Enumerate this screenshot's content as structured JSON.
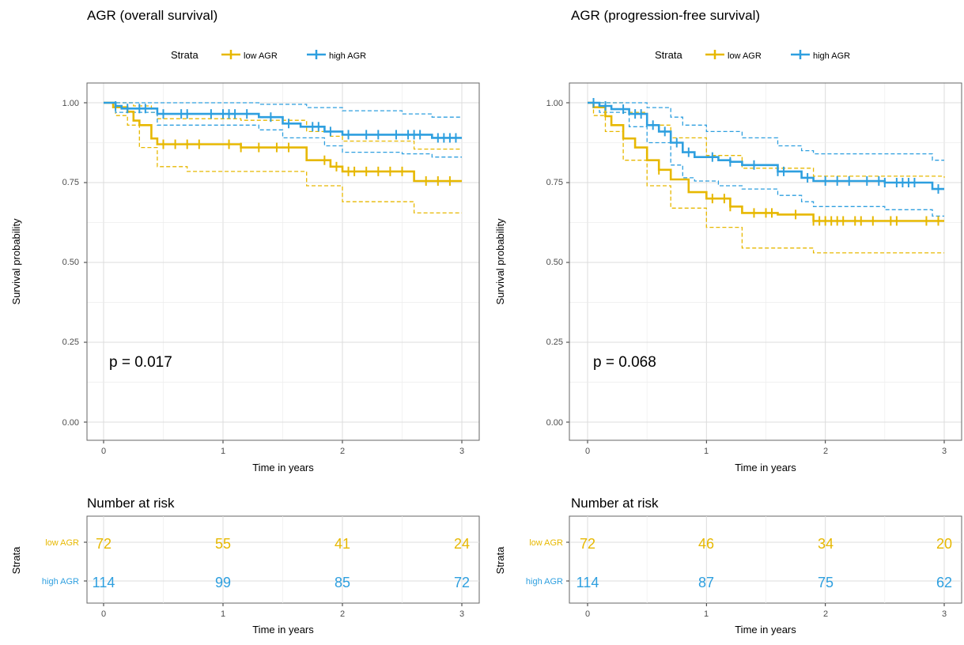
{
  "chart_data": [
    {
      "type": "line",
      "title": "AGR (overall survival)",
      "xlabel": "Time in years",
      "ylabel": "Survival probability",
      "xlim": [
        0,
        3
      ],
      "ylim": [
        0,
        1
      ],
      "x_ticks": [
        "0",
        "1",
        "2",
        "3"
      ],
      "y_ticks": [
        "0.00",
        "0.25",
        "0.50",
        "0.75",
        "1.00"
      ],
      "legend": {
        "title": "Strata",
        "position": "top",
        "entries": [
          "low AGR",
          "high AGR"
        ]
      },
      "grid": true,
      "annotation": "p = 0.017",
      "series": [
        {
          "name": "low AGR",
          "color": "#E7B800",
          "steps": [
            [
              0,
              1
            ],
            [
              0.08,
              0.986
            ],
            [
              0.2,
              0.972
            ],
            [
              0.25,
              0.944
            ],
            [
              0.3,
              0.93
            ],
            [
              0.4,
              0.888
            ],
            [
              0.45,
              0.87
            ],
            [
              1.15,
              0.86
            ],
            [
              1.7,
              0.82
            ],
            [
              1.9,
              0.8
            ],
            [
              2.0,
              0.785
            ],
            [
              2.6,
              0.755
            ],
            [
              3.0,
              0.755
            ]
          ],
          "upper": [
            [
              0,
              1
            ],
            [
              0.1,
              1
            ],
            [
              0.25,
              0.99
            ],
            [
              0.4,
              0.97
            ],
            [
              0.45,
              0.95
            ],
            [
              1.15,
              0.945
            ],
            [
              1.7,
              0.91
            ],
            [
              1.9,
              0.895
            ],
            [
              2.0,
              0.88
            ],
            [
              2.6,
              0.855
            ],
            [
              3.0,
              0.855
            ]
          ],
          "lower": [
            [
              0,
              1
            ],
            [
              0.1,
              0.96
            ],
            [
              0.2,
              0.93
            ],
            [
              0.3,
              0.86
            ],
            [
              0.45,
              0.8
            ],
            [
              0.7,
              0.785
            ],
            [
              1.7,
              0.74
            ],
            [
              2.0,
              0.69
            ],
            [
              2.6,
              0.655
            ],
            [
              3.0,
              0.655
            ]
          ],
          "censor_x": [
            0.5,
            0.6,
            0.7,
            0.8,
            1.05,
            1.15,
            1.3,
            1.45,
            1.55,
            1.85,
            1.95,
            2.05,
            2.1,
            2.2,
            2.3,
            2.4,
            2.5,
            2.7,
            2.8,
            2.9
          ]
        },
        {
          "name": "high AGR",
          "color": "#2E9FDF",
          "steps": [
            [
              0,
              1
            ],
            [
              0.1,
              0.99
            ],
            [
              0.15,
              0.982
            ],
            [
              0.45,
              0.965
            ],
            [
              1.3,
              0.955
            ],
            [
              1.5,
              0.935
            ],
            [
              1.65,
              0.925
            ],
            [
              1.85,
              0.91
            ],
            [
              2.0,
              0.9
            ],
            [
              2.5,
              0.9
            ],
            [
              2.75,
              0.89
            ],
            [
              3.0,
              0.89
            ]
          ],
          "upper": [
            [
              0,
              1
            ],
            [
              1.3,
              0.995
            ],
            [
              1.7,
              0.985
            ],
            [
              2.0,
              0.975
            ],
            [
              2.5,
              0.965
            ],
            [
              2.75,
              0.955
            ],
            [
              3.0,
              0.955
            ]
          ],
          "lower": [
            [
              0,
              1
            ],
            [
              0.1,
              0.97
            ],
            [
              0.45,
              0.93
            ],
            [
              1.3,
              0.915
            ],
            [
              1.5,
              0.89
            ],
            [
              1.85,
              0.865
            ],
            [
              2.0,
              0.845
            ],
            [
              2.5,
              0.84
            ],
            [
              2.75,
              0.83
            ],
            [
              3.0,
              0.83
            ]
          ],
          "censor_x": [
            0.1,
            0.2,
            0.3,
            0.35,
            0.5,
            0.65,
            0.7,
            0.9,
            1.0,
            1.05,
            1.1,
            1.2,
            1.4,
            1.55,
            1.75,
            1.8,
            1.9,
            2.05,
            2.2,
            2.3,
            2.45,
            2.55,
            2.6,
            2.65,
            2.8,
            2.85,
            2.9,
            2.95
          ]
        }
      ],
      "risk_table": {
        "title": "Number at risk",
        "ylabel": "Strata",
        "xlabel": "Time in years",
        "times": [
          0,
          1,
          2,
          3
        ],
        "rows": [
          {
            "label": "low AGR",
            "color": "#E7B800",
            "counts": [
              72,
              55,
              41,
              24
            ]
          },
          {
            "label": "high AGR",
            "color": "#2E9FDF",
            "counts": [
              114,
              99,
              85,
              72
            ]
          }
        ]
      }
    },
    {
      "type": "line",
      "title": "AGR (progression-free survival)",
      "xlabel": "Time in years",
      "ylabel": "Survival probability",
      "xlim": [
        0,
        3
      ],
      "ylim": [
        0,
        1
      ],
      "x_ticks": [
        "0",
        "1",
        "2",
        "3"
      ],
      "y_ticks": [
        "0.00",
        "0.25",
        "0.50",
        "0.75",
        "1.00"
      ],
      "legend": {
        "title": "Strata",
        "position": "top",
        "entries": [
          "low AGR",
          "high AGR"
        ]
      },
      "grid": true,
      "annotation": "p = 0.068",
      "series": [
        {
          "name": "low AGR",
          "color": "#E7B800",
          "steps": [
            [
              0,
              1
            ],
            [
              0.05,
              0.986
            ],
            [
              0.15,
              0.958
            ],
            [
              0.2,
              0.93
            ],
            [
              0.3,
              0.888
            ],
            [
              0.4,
              0.86
            ],
            [
              0.5,
              0.82
            ],
            [
              0.6,
              0.79
            ],
            [
              0.7,
              0.76
            ],
            [
              0.85,
              0.72
            ],
            [
              1.0,
              0.7
            ],
            [
              1.2,
              0.675
            ],
            [
              1.3,
              0.655
            ],
            [
              1.6,
              0.65
            ],
            [
              1.9,
              0.63
            ],
            [
              3.0,
              0.63
            ]
          ],
          "upper": [
            [
              0,
              1
            ],
            [
              0.15,
              1
            ],
            [
              0.3,
              0.97
            ],
            [
              0.5,
              0.93
            ],
            [
              0.7,
              0.89
            ],
            [
              1.0,
              0.835
            ],
            [
              1.3,
              0.795
            ],
            [
              1.9,
              0.77
            ],
            [
              3.0,
              0.765
            ]
          ],
          "lower": [
            [
              0,
              1
            ],
            [
              0.05,
              0.96
            ],
            [
              0.15,
              0.91
            ],
            [
              0.3,
              0.82
            ],
            [
              0.5,
              0.74
            ],
            [
              0.7,
              0.67
            ],
            [
              1.0,
              0.61
            ],
            [
              1.3,
              0.545
            ],
            [
              1.9,
              0.53
            ],
            [
              3.0,
              0.53
            ]
          ],
          "censor_x": [
            0.6,
            1.05,
            1.15,
            1.2,
            1.4,
            1.5,
            1.55,
            1.75,
            1.9,
            1.95,
            2.0,
            2.05,
            2.1,
            2.15,
            2.25,
            2.3,
            2.4,
            2.55,
            2.6,
            2.85,
            2.95
          ]
        },
        {
          "name": "high AGR",
          "color": "#2E9FDF",
          "steps": [
            [
              0,
              1
            ],
            [
              0.1,
              0.99
            ],
            [
              0.2,
              0.98
            ],
            [
              0.35,
              0.965
            ],
            [
              0.5,
              0.93
            ],
            [
              0.6,
              0.91
            ],
            [
              0.7,
              0.875
            ],
            [
              0.8,
              0.845
            ],
            [
              0.9,
              0.83
            ],
            [
              1.1,
              0.82
            ],
            [
              1.2,
              0.815
            ],
            [
              1.3,
              0.805
            ],
            [
              1.6,
              0.785
            ],
            [
              1.8,
              0.765
            ],
            [
              1.9,
              0.755
            ],
            [
              2.5,
              0.75
            ],
            [
              2.9,
              0.73
            ],
            [
              3.0,
              0.73
            ]
          ],
          "upper": [
            [
              0,
              1
            ],
            [
              0.35,
              1
            ],
            [
              0.5,
              0.985
            ],
            [
              0.7,
              0.955
            ],
            [
              0.8,
              0.93
            ],
            [
              1.0,
              0.91
            ],
            [
              1.3,
              0.89
            ],
            [
              1.6,
              0.865
            ],
            [
              1.8,
              0.85
            ],
            [
              1.9,
              0.84
            ],
            [
              2.5,
              0.84
            ],
            [
              2.9,
              0.82
            ],
            [
              3.0,
              0.82
            ]
          ],
          "lower": [
            [
              0,
              1
            ],
            [
              0.1,
              0.97
            ],
            [
              0.35,
              0.925
            ],
            [
              0.5,
              0.875
            ],
            [
              0.7,
              0.805
            ],
            [
              0.8,
              0.765
            ],
            [
              0.9,
              0.755
            ],
            [
              1.1,
              0.74
            ],
            [
              1.3,
              0.73
            ],
            [
              1.6,
              0.71
            ],
            [
              1.8,
              0.69
            ],
            [
              1.9,
              0.675
            ],
            [
              2.5,
              0.665
            ],
            [
              2.9,
              0.645
            ],
            [
              3.0,
              0.645
            ]
          ],
          "censor_x": [
            0.05,
            0.15,
            0.3,
            0.4,
            0.45,
            0.55,
            0.65,
            0.75,
            0.85,
            1.05,
            1.2,
            1.4,
            1.6,
            1.65,
            1.85,
            2.0,
            2.1,
            2.2,
            2.35,
            2.45,
            2.5,
            2.6,
            2.65,
            2.7,
            2.75,
            2.95
          ]
        }
      ],
      "risk_table": {
        "title": "Number at risk",
        "ylabel": "Strata",
        "xlabel": "Time in years",
        "times": [
          0,
          1,
          2,
          3
        ],
        "rows": [
          {
            "label": "low AGR",
            "color": "#E7B800",
            "counts": [
              72,
              46,
              34,
              20
            ]
          },
          {
            "label": "high AGR",
            "color": "#2E9FDF",
            "counts": [
              114,
              87,
              75,
              62
            ]
          }
        ]
      }
    }
  ]
}
